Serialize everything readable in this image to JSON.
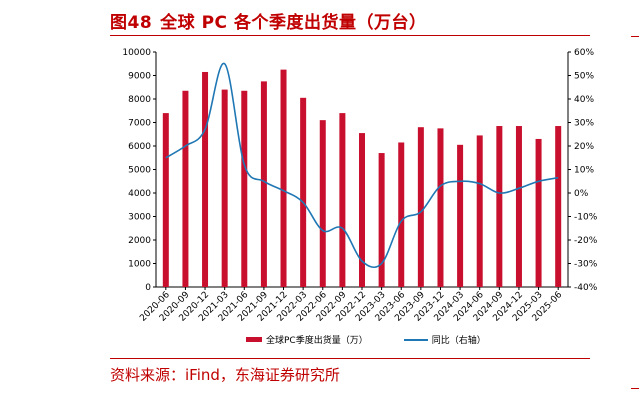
{
  "figure": {
    "number": "图48",
    "title": "全球 PC 各个季度出货量（万台）",
    "source": "资料来源：iFind，东海证券研究所"
  },
  "colors": {
    "accent": "#c00000",
    "bar": "#c8102e",
    "line": "#1f77b4"
  },
  "chart_data": {
    "type": "bar",
    "categories": [
      "2020-06",
      "2020-09",
      "2020-12",
      "2021-03",
      "2021-06",
      "2021-09",
      "2021-12",
      "2022-03",
      "2022-06",
      "2022-09",
      "2022-12",
      "2023-03",
      "2023-06",
      "2023-09",
      "2023-12",
      "2024-03",
      "2024-06",
      "2024-09",
      "2024-12",
      "2025-03",
      "2025-06"
    ],
    "series": [
      {
        "name": "全球PC季度出货量（万）",
        "type": "bar",
        "axis": "left",
        "values": [
          7400,
          8350,
          9150,
          8400,
          8350,
          8750,
          9250,
          8050,
          7100,
          7400,
          6550,
          5700,
          6150,
          6800,
          6750,
          6050,
          6450,
          6850,
          6850,
          6300,
          6850
        ]
      },
      {
        "name": "同比（右轴）",
        "type": "line",
        "axis": "right",
        "values": [
          15,
          20,
          27,
          55,
          12,
          5,
          1,
          -4,
          -16,
          -15,
          -29,
          -30,
          -12,
          -8,
          3,
          5,
          4,
          0,
          2,
          5,
          6.5
        ]
      }
    ],
    "y_left": {
      "min": 0,
      "max": 10000,
      "step": 1000
    },
    "y_right": {
      "min": -40,
      "max": 60,
      "step": 10,
      "unit": "%"
    },
    "legend_position": "bottom",
    "grid": false
  }
}
